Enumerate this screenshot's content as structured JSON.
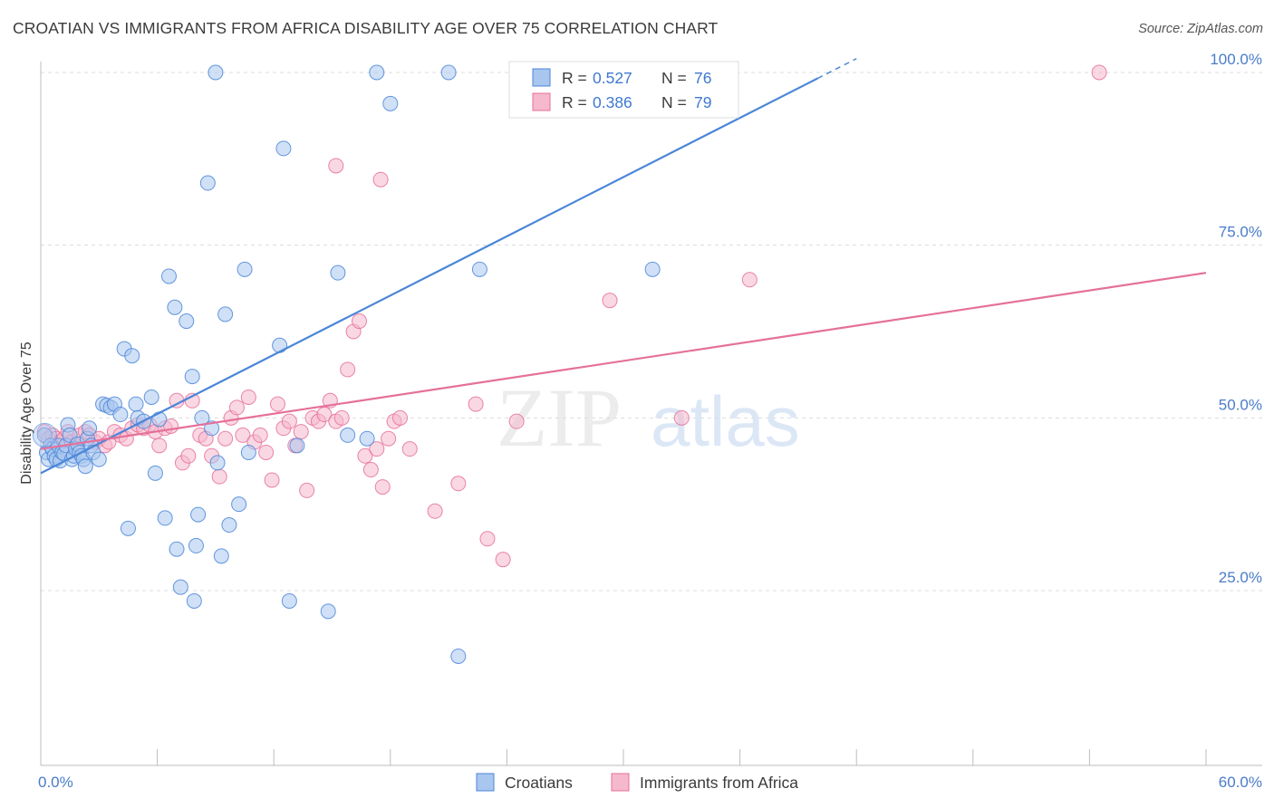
{
  "header": {
    "title": "CROATIAN VS IMMIGRANTS FROM AFRICA DISABILITY AGE OVER 75 CORRELATION CHART",
    "source": "Source: ZipAtlas.com"
  },
  "watermark": {
    "zip": "ZIP",
    "atlas": "atlas"
  },
  "colors": {
    "blue": "#4a86d8",
    "blue_fill": "#a9c6ef",
    "pink": "#e5709a",
    "pink_fill": "#f6b8cc",
    "tick": "#4a7cc9"
  },
  "chart_data": {
    "type": "scatter",
    "title": "CROATIAN VS IMMIGRANTS FROM AFRICA DISABILITY AGE OVER 75 CORRELATION CHART",
    "xlabel": "",
    "ylabel": "Disability Age Over 75",
    "xlim": [
      0,
      60
    ],
    "ylim": [
      2,
      103
    ],
    "x_tick_labels": {
      "left": "0.0%",
      "right": "60.0%"
    },
    "y_ticks": [
      {
        "value": 25,
        "label": "25.0%"
      },
      {
        "value": 50,
        "label": "50.0%"
      },
      {
        "value": 75,
        "label": "75.0%"
      },
      {
        "value": 100,
        "label": "100.0%"
      }
    ],
    "grid": true,
    "legend_position": "top-center",
    "series": [
      {
        "name": "Croatians",
        "color": "#4a86d8",
        "fill": "#a9c6ef",
        "R": "0.527",
        "N": "76",
        "trend": {
          "x0": 0,
          "y0": 42,
          "x1": 42,
          "y1": 102
        },
        "points": [
          [
            0.2,
            47.5
          ],
          [
            0.3,
            45
          ],
          [
            0.4,
            44
          ],
          [
            0.5,
            46
          ],
          [
            0.6,
            45.5
          ],
          [
            0.7,
            44.5
          ],
          [
            0.8,
            44
          ],
          [
            0.9,
            46
          ],
          [
            1.0,
            43.8
          ],
          [
            1.1,
            45
          ],
          [
            1.2,
            44.8
          ],
          [
            1.3,
            46
          ],
          [
            1.4,
            49
          ],
          [
            1.5,
            47.5
          ],
          [
            1.6,
            44
          ],
          [
            1.7,
            44.5
          ],
          [
            1.8,
            45.5
          ],
          [
            1.9,
            46.2
          ],
          [
            2.0,
            45
          ],
          [
            2.1,
            44.5
          ],
          [
            2.2,
            44
          ],
          [
            2.3,
            43
          ],
          [
            2.4,
            47
          ],
          [
            2.5,
            48.5
          ],
          [
            2.6,
            46
          ],
          [
            2.7,
            45
          ],
          [
            3.0,
            44
          ],
          [
            3.2,
            52
          ],
          [
            3.4,
            51.8
          ],
          [
            3.6,
            51.5
          ],
          [
            3.8,
            52
          ],
          [
            4.1,
            50.5
          ],
          [
            4.3,
            60
          ],
          [
            4.5,
            34
          ],
          [
            4.7,
            59
          ],
          [
            4.9,
            52
          ],
          [
            5.0,
            50
          ],
          [
            5.3,
            49.5
          ],
          [
            5.7,
            53
          ],
          [
            5.9,
            42
          ],
          [
            6.1,
            49.8
          ],
          [
            6.4,
            35.5
          ],
          [
            6.6,
            70.5
          ],
          [
            6.9,
            66
          ],
          [
            7.0,
            31
          ],
          [
            7.2,
            25.5
          ],
          [
            7.5,
            64
          ],
          [
            7.8,
            56
          ],
          [
            7.9,
            23.5
          ],
          [
            8.0,
            31.5
          ],
          [
            8.1,
            36
          ],
          [
            8.3,
            50
          ],
          [
            8.6,
            84
          ],
          [
            8.8,
            48.5
          ],
          [
            9.1,
            43.5
          ],
          [
            9.3,
            30
          ],
          [
            9.5,
            65
          ],
          [
            9.7,
            34.5
          ],
          [
            10.2,
            37.5
          ],
          [
            10.5,
            71.5
          ],
          [
            10.7,
            45
          ],
          [
            12.3,
            60.5
          ],
          [
            12.5,
            89
          ],
          [
            12.8,
            23.5
          ],
          [
            13.2,
            46
          ],
          [
            14.8,
            22
          ],
          [
            15.3,
            71
          ],
          [
            15.8,
            47.5
          ],
          [
            16.8,
            47
          ],
          [
            17.3,
            100
          ],
          [
            18.0,
            95.5
          ],
          [
            21.0,
            100
          ],
          [
            21.5,
            15.5
          ],
          [
            22.6,
            71.5
          ],
          [
            31.5,
            71.5
          ],
          [
            9.0,
            100
          ]
        ]
      },
      {
        "name": "Immigrants from Africa",
        "color": "#e5709a",
        "fill": "#f6b8cc",
        "R": "0.386",
        "N": "79",
        "trend": {
          "x0": 0,
          "y0": 45.5,
          "x1": 60,
          "y1": 71
        },
        "points": [
          [
            0.2,
            48
          ],
          [
            0.4,
            47
          ],
          [
            0.6,
            47.5
          ],
          [
            0.8,
            47
          ],
          [
            1.0,
            46.5
          ],
          [
            1.2,
            47
          ],
          [
            1.4,
            48
          ],
          [
            1.6,
            46.5
          ],
          [
            1.8,
            46
          ],
          [
            2.0,
            47.5
          ],
          [
            2.3,
            48
          ],
          [
            2.5,
            47.5
          ],
          [
            2.8,
            46.5
          ],
          [
            3.0,
            47
          ],
          [
            3.3,
            46
          ],
          [
            3.5,
            46.5
          ],
          [
            3.8,
            48
          ],
          [
            4.1,
            47.5
          ],
          [
            4.4,
            47
          ],
          [
            4.7,
            48.5
          ],
          [
            5.0,
            49
          ],
          [
            5.3,
            48.5
          ],
          [
            5.6,
            49
          ],
          [
            5.9,
            48
          ],
          [
            6.1,
            46
          ],
          [
            6.4,
            48.5
          ],
          [
            6.7,
            48.8
          ],
          [
            7.0,
            52.5
          ],
          [
            7.3,
            43.5
          ],
          [
            7.6,
            44.5
          ],
          [
            7.8,
            52.5
          ],
          [
            8.2,
            47.5
          ],
          [
            8.5,
            47
          ],
          [
            8.8,
            44.5
          ],
          [
            9.2,
            41.5
          ],
          [
            9.5,
            47
          ],
          [
            9.8,
            50
          ],
          [
            10.1,
            51.5
          ],
          [
            10.4,
            47.5
          ],
          [
            10.7,
            53
          ],
          [
            11.0,
            46.5
          ],
          [
            11.3,
            47.5
          ],
          [
            11.6,
            45
          ],
          [
            11.9,
            41
          ],
          [
            12.2,
            52
          ],
          [
            12.5,
            48.5
          ],
          [
            12.8,
            49.5
          ],
          [
            13.1,
            46
          ],
          [
            13.4,
            48
          ],
          [
            13.7,
            39.5
          ],
          [
            14.0,
            50
          ],
          [
            14.3,
            49.5
          ],
          [
            14.6,
            50.5
          ],
          [
            14.9,
            52.5
          ],
          [
            15.2,
            49.5
          ],
          [
            15.5,
            50
          ],
          [
            15.8,
            57
          ],
          [
            16.1,
            62.5
          ],
          [
            16.4,
            64
          ],
          [
            16.7,
            44.5
          ],
          [
            17.0,
            42.5
          ],
          [
            17.3,
            45.5
          ],
          [
            17.6,
            40
          ],
          [
            17.9,
            47
          ],
          [
            18.2,
            49.5
          ],
          [
            18.5,
            50
          ],
          [
            15.2,
            86.5
          ],
          [
            17.5,
            84.5
          ],
          [
            19.0,
            45.5
          ],
          [
            20.3,
            36.5
          ],
          [
            21.5,
            40.5
          ],
          [
            22.4,
            52
          ],
          [
            23.0,
            32.5
          ],
          [
            23.8,
            29.5
          ],
          [
            24.5,
            49.5
          ],
          [
            29.3,
            67
          ],
          [
            33.0,
            50
          ],
          [
            36.5,
            70
          ],
          [
            54.5,
            100
          ]
        ]
      }
    ]
  }
}
